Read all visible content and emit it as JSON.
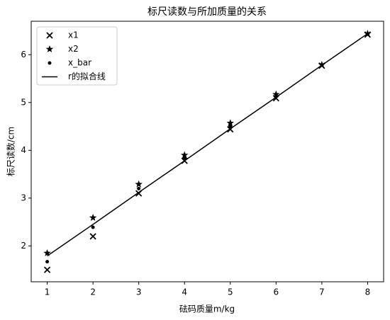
{
  "chart_data": {
    "type": "scatter",
    "title": "标尺读数与所加质量的关系",
    "x_label": "砝码质量m/kg",
    "y_label": "标尺读数/cm",
    "x": [
      1,
      2,
      3,
      4,
      5,
      6,
      7,
      8
    ],
    "series": [
      {
        "name": "x1",
        "color": "#000000",
        "marker": "x",
        "values": [
          1.5,
          2.2,
          3.1,
          3.78,
          4.44,
          5.09,
          5.77,
          6.42
        ]
      },
      {
        "name": "x2",
        "color": "#000000",
        "marker": "star",
        "values": [
          1.85,
          2.59,
          3.29,
          3.9,
          4.57,
          5.17,
          5.79,
          6.44
        ]
      },
      {
        "name": "x_bar",
        "color": "#000000",
        "marker": "dot",
        "values": [
          1.67,
          2.39,
          3.2,
          3.84,
          4.5,
          5.13,
          5.78,
          6.43
        ]
      },
      {
        "name": "r的拟合线",
        "color": "#000000",
        "marker": "line",
        "values": [
          1.79,
          2.45,
          3.12,
          3.78,
          4.45,
          5.11,
          5.78,
          6.44
        ]
      }
    ],
    "xlim": [
      0.65,
      8.35
    ],
    "ylim": [
      1.25,
      6.7
    ],
    "xticks": [
      1,
      2,
      3,
      4,
      5,
      6,
      7,
      8
    ],
    "yticks": [
      2,
      3,
      4,
      5,
      6
    ],
    "grid": false,
    "legend": "upper-left"
  }
}
